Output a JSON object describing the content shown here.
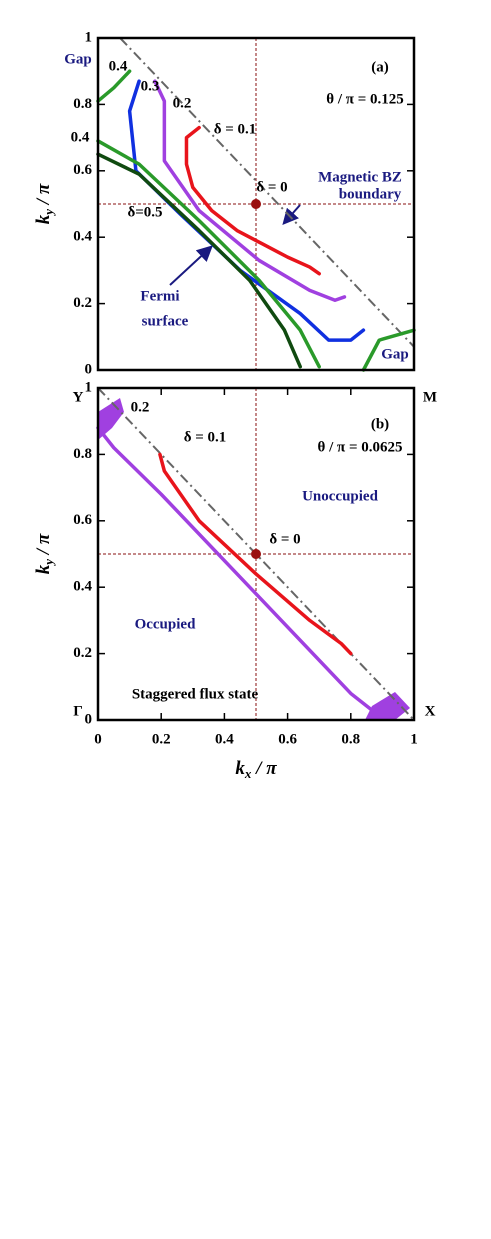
{
  "chart_data": [
    {
      "type": "line",
      "xlim": [
        0,
        1
      ],
      "ylim": [
        0,
        1
      ],
      "yticks": [
        0,
        0.2,
        0.4,
        0.6,
        0.8,
        1
      ],
      "ylabel": {
        "base": "k",
        "sub": "y",
        "rest": " / π"
      },
      "crosshair": {
        "x": 0.5,
        "y": 0.5
      },
      "boundary": {
        "x": [
          0.07,
          1
        ],
        "y": [
          1,
          0.07
        ]
      },
      "point": {
        "x": 0.5,
        "y": 0.5,
        "color": "#9a1010"
      },
      "series": [
        {
          "color": "#e8141b",
          "x": [
            0.32,
            0.28,
            0.28,
            0.3,
            0.36,
            0.44,
            0.52,
            0.6,
            0.67,
            0.7
          ],
          "y": [
            0.73,
            0.7,
            0.62,
            0.55,
            0.48,
            0.42,
            0.38,
            0.34,
            0.31,
            0.29
          ]
        },
        {
          "color": "#a040e0",
          "x": [
            0.18,
            0.21,
            0.21,
            0.32,
            0.51,
            0.67,
            0.75,
            0.78
          ],
          "y": [
            0.87,
            0.81,
            0.63,
            0.48,
            0.33,
            0.24,
            0.21,
            0.22
          ]
        },
        {
          "color": "#1030e0",
          "x": [
            0.13,
            0.1,
            0.12,
            0.26,
            0.45,
            0.64,
            0.73,
            0.8,
            0.84
          ],
          "y": [
            0.87,
            0.78,
            0.6,
            0.47,
            0.3,
            0.17,
            0.09,
            0.09,
            0.12
          ]
        },
        {
          "color": "#2a9a2a",
          "x": [
            0,
            0.05,
            0.1,
            null,
            0,
            0.13,
            0.32,
            0.51,
            0.64,
            0.7,
            null,
            0.84,
            0.89,
            1
          ],
          "y": [
            0.81,
            0.85,
            0.9,
            null,
            0.69,
            0.62,
            0.45,
            0.27,
            0.12,
            0.01,
            null,
            0,
            0.09,
            0.12
          ]
        },
        {
          "color": "#104a10",
          "x": [
            0,
            0.13,
            0.32,
            0.48,
            0.59,
            0.64
          ],
          "y": [
            0.65,
            0.59,
            0.42,
            0.27,
            0.12,
            0.01
          ]
        }
      ],
      "annotations": [
        "Gap",
        "0.4",
        "0.3",
        "0.2",
        "0.4",
        "δ = 0.1",
        "(a)",
        "θ / π = 0.125",
        "δ = 0",
        "Magnetic BZ",
        "boundary",
        "δ=0.5",
        "Fermi",
        "surface",
        "Gap"
      ]
    },
    {
      "type": "line",
      "xlim": [
        0,
        1
      ],
      "ylim": [
        0,
        1
      ],
      "xticks": [
        0,
        0.2,
        0.4,
        0.6,
        0.8,
        1
      ],
      "yticks": [
        0,
        0.2,
        0.4,
        0.6,
        0.8,
        1
      ],
      "xlabel": {
        "base": "k",
        "sub": "x",
        "rest": " / π"
      },
      "ylabel": {
        "base": "k",
        "sub": "y",
        "rest": " / π"
      },
      "crosshair": {
        "x": 0.5,
        "y": 0.5
      },
      "boundary": {
        "x": [
          0,
          1
        ],
        "y": [
          1,
          0
        ]
      },
      "point": {
        "x": 0.5,
        "y": 0.5,
        "color": "#9a1010"
      },
      "series": [
        {
          "color": "#e8141b",
          "x": [
            0.196,
            0.21,
            0.32,
            0.5,
            0.67,
            0.77,
            0.8
          ],
          "y": [
            0.8,
            0.75,
            0.6,
            0.44,
            0.3,
            0.23,
            0.2
          ]
        },
        {
          "color": "#a040e0",
          "x": [
            0,
            0.05,
            0.2,
            0.5,
            0.8,
            0.88,
            0.95
          ],
          "y": [
            0.88,
            0.82,
            0.68,
            0.38,
            0.08,
            0.02,
            0.02
          ]
        }
      ],
      "annotations": [
        "Y",
        "M",
        "0.2",
        "(b)",
        "δ = 0.1",
        "θ / π = 0.0625",
        "Unoccupied",
        "δ = 0",
        "Occupied",
        "Staggered flux state",
        "Γ",
        "X"
      ]
    }
  ]
}
